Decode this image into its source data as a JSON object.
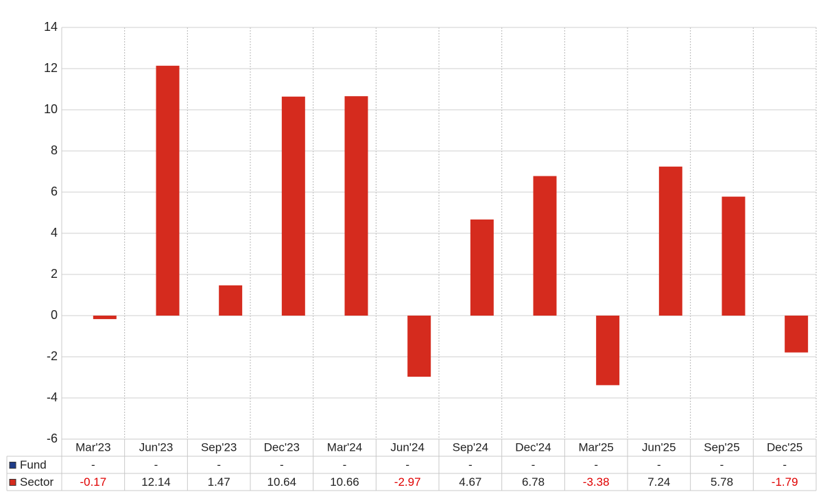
{
  "chart_data": {
    "type": "bar",
    "categories": [
      "Mar'23",
      "Jun'23",
      "Sep'23",
      "Dec'23",
      "Mar'24",
      "Jun'24",
      "Sep'24",
      "Dec'24",
      "Mar'25",
      "Jun'25",
      "Sep'25",
      "Dec'25"
    ],
    "series": [
      {
        "name": "Fund",
        "color": "#1f3c88",
        "values": [
          null,
          null,
          null,
          null,
          null,
          null,
          null,
          null,
          null,
          null,
          null,
          null
        ],
        "value_labels": [
          "-",
          "-",
          "-",
          "-",
          "-",
          "-",
          "-",
          "-",
          "-",
          "-",
          "-",
          "-"
        ]
      },
      {
        "name": "Sector",
        "color": "#d52b1e",
        "values": [
          -0.17,
          12.14,
          1.47,
          10.64,
          10.66,
          -2.97,
          4.67,
          6.78,
          -3.38,
          7.24,
          5.78,
          -1.79
        ]
      }
    ],
    "ylim": [
      -6,
      14
    ],
    "yticks": [
      -6,
      -4,
      -2,
      0,
      2,
      4,
      6,
      8,
      10,
      12,
      14
    ],
    "grid": true
  }
}
